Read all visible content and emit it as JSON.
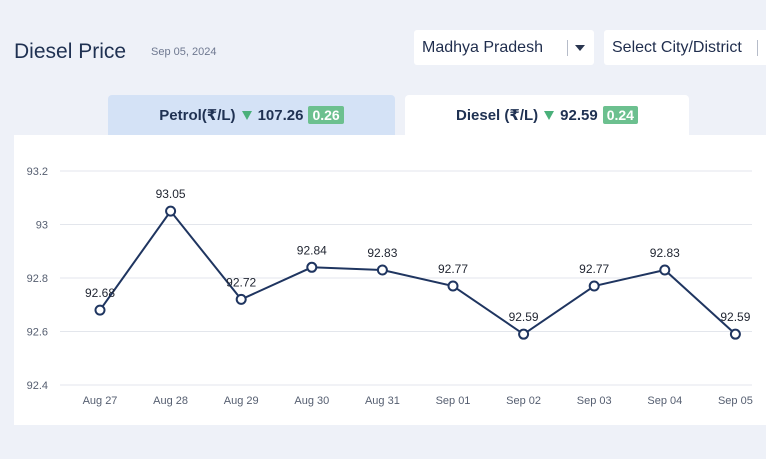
{
  "header": {
    "title": "Diesel Price",
    "date": "Sep 05, 2024"
  },
  "filters": {
    "state": "Madhya Pradesh",
    "city_placeholder": "Select City/District"
  },
  "tabs": {
    "petrol": {
      "label": "Petrol(₹/L)",
      "price": "107.26",
      "change": "0.26"
    },
    "diesel": {
      "label": "Diesel (₹/L)",
      "price": "92.59",
      "change": "0.24"
    }
  },
  "colors": {
    "line": "#1f3560",
    "grid": "#e3e6ec",
    "down_arrow": "#4ab07a",
    "badge": "#6cc08f"
  },
  "chart_data": {
    "type": "line",
    "categories": [
      "Aug 27",
      "Aug 28",
      "Aug 29",
      "Aug 30",
      "Aug 31",
      "Sep 01",
      "Sep 02",
      "Sep 03",
      "Sep 04",
      "Sep 05"
    ],
    "series": [
      {
        "values": [
          92.68,
          93.05,
          92.72,
          92.84,
          92.83,
          92.77,
          92.59,
          92.77,
          92.83,
          92.59
        ]
      }
    ],
    "data_labels": [
      "92.68",
      "93.05",
      "92.72",
      "92.84",
      "92.83",
      "92.77",
      "92.59",
      "92.77",
      "92.83",
      "92.59"
    ],
    "yticks": [
      92.4,
      92.6,
      92.8,
      93,
      93.2
    ],
    "ytick_labels": [
      "92.4",
      "92.6",
      "92.8",
      "93",
      "93.2"
    ],
    "ylim": [
      92.4,
      93.2
    ],
    "grid": true,
    "marker": "open-circle"
  }
}
